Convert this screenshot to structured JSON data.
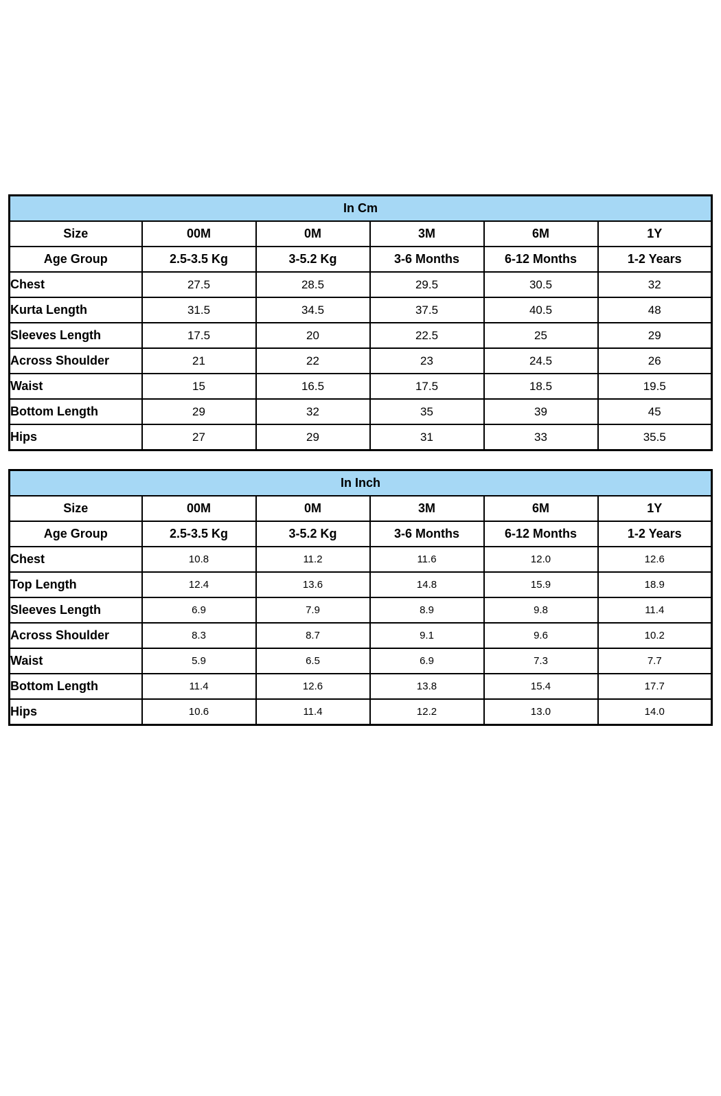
{
  "styles": {
    "page_bg": "#FFFFFF",
    "header_bg": "#A6D8F5",
    "border_color": "#000000",
    "text_color": "#000000"
  },
  "chart_data": [
    {
      "type": "table",
      "unit": "cm",
      "title": "In Cm",
      "columns": [
        "Size",
        "00M",
        "0M",
        "3M",
        "6M",
        "1Y"
      ],
      "age_group": [
        "Age Group",
        "2.5-3.5 Kg",
        "3-5.2 Kg",
        "3-6 Months",
        "6-12 Months",
        "1-2 Years"
      ],
      "rows": [
        {
          "label": "Chest",
          "values": [
            "27.5",
            "28.5",
            "29.5",
            "30.5",
            "32"
          ]
        },
        {
          "label": "Kurta Length",
          "values": [
            "31.5",
            "34.5",
            "37.5",
            "40.5",
            "48"
          ]
        },
        {
          "label": "Sleeves Length",
          "values": [
            "17.5",
            "20",
            "22.5",
            "25",
            "29"
          ]
        },
        {
          "label": "Across Shoulder",
          "values": [
            "21",
            "22",
            "23",
            "24.5",
            "26"
          ]
        },
        {
          "label": "Waist",
          "values": [
            "15",
            "16.5",
            "17.5",
            "18.5",
            "19.5"
          ]
        },
        {
          "label": "Bottom Length",
          "values": [
            "29",
            "32",
            "35",
            "39",
            "45"
          ]
        },
        {
          "label": "Hips",
          "values": [
            "27",
            "29",
            "31",
            "33",
            "35.5"
          ]
        }
      ]
    },
    {
      "type": "table",
      "unit": "inch",
      "title": "In Inch",
      "columns": [
        "Size",
        "00M",
        "0M",
        "3M",
        "6M",
        "1Y"
      ],
      "age_group": [
        "Age Group",
        "2.5-3.5 Kg",
        "3-5.2 Kg",
        "3-6 Months",
        "6-12 Months",
        "1-2 Years"
      ],
      "rows": [
        {
          "label": "Chest",
          "values": [
            "10.8",
            "11.2",
            "11.6",
            "12.0",
            "12.6"
          ]
        },
        {
          "label": "Top Length",
          "values": [
            "12.4",
            "13.6",
            "14.8",
            "15.9",
            "18.9"
          ]
        },
        {
          "label": "Sleeves Length",
          "values": [
            "6.9",
            "7.9",
            "8.9",
            "9.8",
            "11.4"
          ]
        },
        {
          "label": "Across Shoulder",
          "values": [
            "8.3",
            "8.7",
            "9.1",
            "9.6",
            "10.2"
          ]
        },
        {
          "label": "Waist",
          "values": [
            "5.9",
            "6.5",
            "6.9",
            "7.3",
            "7.7"
          ]
        },
        {
          "label": "Bottom Length",
          "values": [
            "11.4",
            "12.6",
            "13.8",
            "15.4",
            "17.7"
          ]
        },
        {
          "label": "Hips",
          "values": [
            "10.6",
            "11.4",
            "12.2",
            "13.0",
            "14.0"
          ]
        }
      ]
    }
  ]
}
